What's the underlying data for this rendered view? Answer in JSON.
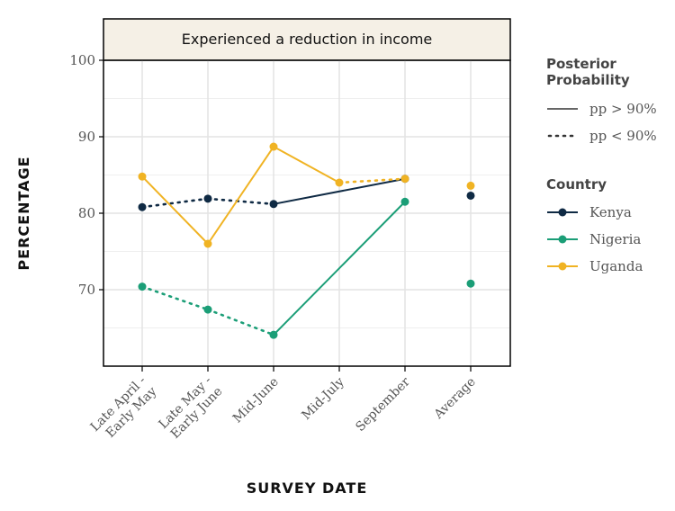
{
  "chart_data": {
    "type": "line",
    "title": "Experienced a reduction in income",
    "xlabel": "SURVEY DATE",
    "ylabel": "PERCENTAGE",
    "ylim": [
      60,
      100
    ],
    "yticks": [
      70,
      80,
      90,
      100
    ],
    "grid": true,
    "categories": [
      [
        "Late April -",
        "Early May"
      ],
      [
        "Late May -",
        "Early June"
      ],
      [
        "Mid-June"
      ],
      [
        "Mid-July"
      ],
      [
        "September"
      ],
      [
        "Average"
      ]
    ],
    "series": [
      {
        "name": "Kenya",
        "color": "#0f2a44",
        "values": [
          80.8,
          81.9,
          81.2,
          null,
          84.5,
          82.3
        ],
        "segment_styles": [
          "dotted",
          "dotted",
          "solid",
          null,
          null
        ]
      },
      {
        "name": "Nigeria",
        "color": "#1b9e77",
        "values": [
          70.4,
          67.4,
          64.1,
          null,
          81.5,
          70.8
        ],
        "segment_styles": [
          "dotted",
          "dotted",
          "solid",
          null,
          null
        ]
      },
      {
        "name": "Uganda",
        "color": "#f0b323",
        "values": [
          84.8,
          76.0,
          88.7,
          84.0,
          84.5,
          83.6
        ],
        "segment_styles": [
          "solid",
          "solid",
          "solid",
          "dotted",
          null
        ]
      }
    ],
    "legend": {
      "pp_title": [
        "Posterior",
        "Probability"
      ],
      "pp_items": [
        {
          "label": "pp > 90%",
          "style": "solid"
        },
        {
          "label": "pp < 90%",
          "style": "dotted"
        }
      ],
      "country_title": "Country"
    }
  }
}
